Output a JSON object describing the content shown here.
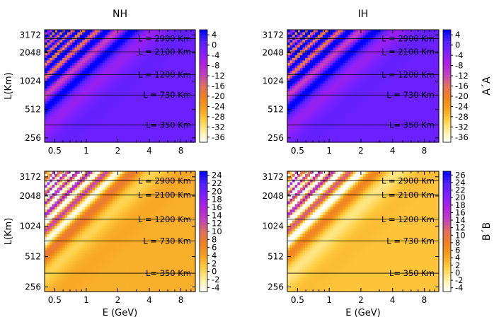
{
  "figure": {
    "column_titles": [
      "NH",
      "IH"
    ],
    "row_labels": [
      "A´A",
      "B´B"
    ],
    "xlabel": "E (GeV)",
    "ylabel": "L(Km)"
  },
  "chart_data": [
    {
      "type": "heatmap",
      "panel": "NH A´A",
      "row": 0,
      "col": 0,
      "title": "NH",
      "xlabel": "",
      "ylabel": "L(Km)",
      "side_label": "",
      "x_scale": "log",
      "y_scale": "log",
      "xlim": [
        0.4,
        11
      ],
      "ylim": [
        230,
        3600
      ],
      "x_ticks": [
        0.5,
        1,
        2,
        4,
        8
      ],
      "x_tick_labels": [
        "0.5",
        "1",
        "2",
        "4",
        "8"
      ],
      "y_ticks": [
        256,
        512,
        1024,
        2048,
        3172
      ],
      "y_tick_labels": [
        "256",
        "512",
        "1024",
        "2048",
        "3172"
      ],
      "colorbar": {
        "min": -38,
        "max": 6,
        "ticks": [
          4,
          0,
          -4,
          -8,
          -12,
          -16,
          -20,
          -24,
          -28,
          -32,
          -36
        ],
        "tick_labels": [
          "4",
          "0",
          "-4",
          "-8",
          "-12",
          "-16",
          "-20",
          "-24",
          "-28",
          "-32",
          "-36"
        ]
      },
      "colormap": [
        "#ffffff",
        "#fff0a0",
        "#ffcc40",
        "#f5a020",
        "#f08020",
        "#e07060",
        "#c040c0",
        "#b020e0",
        "#8020ff",
        "#5020ff",
        "#0000ff"
      ],
      "baseline_value": -1,
      "baselines": [
        {
          "L": 2900,
          "label": "L = 2900 Km"
        },
        {
          "L": 2100,
          "label": "L = 2100 Km"
        },
        {
          "L": 1200,
          "label": "L = 1200 Km"
        },
        {
          "L": 730,
          "label": "L = 730 Km"
        },
        {
          "L": 350,
          "label": "L= 350 Km"
        }
      ]
    },
    {
      "type": "heatmap",
      "panel": "IH A´A",
      "row": 0,
      "col": 1,
      "title": "IH",
      "xlabel": "",
      "ylabel": "",
      "side_label": "A´A",
      "x_scale": "log",
      "y_scale": "log",
      "xlim": [
        0.4,
        11
      ],
      "ylim": [
        230,
        3600
      ],
      "x_ticks": [
        0.5,
        1,
        2,
        4,
        8
      ],
      "x_tick_labels": [
        "0.5",
        "1",
        "2",
        "4",
        "8"
      ],
      "y_ticks": [
        256,
        512,
        1024,
        2048,
        3172
      ],
      "y_tick_labels": [
        "256",
        "512",
        "1024",
        "2048",
        "3172"
      ],
      "colorbar": {
        "min": -38,
        "max": 6,
        "ticks": [
          4,
          0,
          -4,
          -8,
          -12,
          -16,
          -20,
          -24,
          -28,
          -32,
          -36
        ],
        "tick_labels": [
          "4",
          "0",
          "-4",
          "-8",
          "-12",
          "-16",
          "-20",
          "-24",
          "-28",
          "-32",
          "-36"
        ]
      },
      "colormap": [
        "#ffffff",
        "#fff0a0",
        "#ffcc40",
        "#f5a020",
        "#f08020",
        "#e07060",
        "#c040c0",
        "#b020e0",
        "#8020ff",
        "#5020ff",
        "#0000ff"
      ],
      "baseline_value": -1,
      "baselines": [
        {
          "L": 2900,
          "label": "L = 2900 Km"
        },
        {
          "L": 2100,
          "label": "L = 2100 Km"
        },
        {
          "L": 1200,
          "label": "L = 1200 Km"
        },
        {
          "L": 730,
          "label": "L = 730 Km"
        },
        {
          "L": 350,
          "label": "L= 350 Km"
        }
      ]
    },
    {
      "type": "heatmap",
      "panel": "NH B´B",
      "row": 1,
      "col": 0,
      "title": "",
      "xlabel": "E (GeV)",
      "ylabel": "L(Km)",
      "side_label": "",
      "x_scale": "log",
      "y_scale": "log",
      "xlim": [
        0.4,
        11
      ],
      "ylim": [
        230,
        3600
      ],
      "x_ticks": [
        0.5,
        1,
        2,
        4,
        8
      ],
      "x_tick_labels": [
        "0.5",
        "1",
        "2",
        "4",
        "8"
      ],
      "y_ticks": [
        256,
        512,
        1024,
        2048,
        3172
      ],
      "y_tick_labels": [
        "256",
        "512",
        "1024",
        "2048",
        "3172"
      ],
      "colorbar": {
        "min": -5,
        "max": 25,
        "ticks": [
          24,
          22,
          20,
          18,
          16,
          14,
          12,
          10,
          8,
          6,
          4,
          2,
          0,
          -2,
          -4
        ],
        "tick_labels": [
          "24",
          "22",
          "20",
          "18",
          "16",
          "14",
          "12",
          "10",
          "8",
          "6",
          "4",
          "2",
          "0",
          "-2",
          "-4"
        ]
      },
      "colormap": [
        "#ffffff",
        "#fff0a0",
        "#ffcc40",
        "#f5a020",
        "#f08020",
        "#e07060",
        "#c040c0",
        "#b020e0",
        "#8020ff",
        "#5020ff",
        "#0000ff"
      ],
      "baseline_value": 3,
      "baselines": [
        {
          "L": 2900,
          "label": "L = 2900 Km"
        },
        {
          "L": 2100,
          "label": "L = 2100 Km"
        },
        {
          "L": 1200,
          "label": "L = 1200 Km"
        },
        {
          "L": 730,
          "label": "L = 730 Km"
        },
        {
          "L": 350,
          "label": "L= 350 Km"
        }
      ]
    },
    {
      "type": "heatmap",
      "panel": "IH B´B",
      "row": 1,
      "col": 1,
      "title": "",
      "xlabel": "E (GeV)",
      "ylabel": "",
      "side_label": "B´B",
      "x_scale": "log",
      "y_scale": "log",
      "xlim": [
        0.4,
        11
      ],
      "ylim": [
        230,
        3600
      ],
      "x_ticks": [
        0.5,
        1,
        2,
        4,
        8
      ],
      "x_tick_labels": [
        "0.5",
        "1",
        "2",
        "4",
        "8"
      ],
      "y_ticks": [
        256,
        512,
        1024,
        2048,
        3172
      ],
      "y_tick_labels": [
        "256",
        "512",
        "1024",
        "2048",
        "3172"
      ],
      "colorbar": {
        "min": -5,
        "max": 27,
        "ticks": [
          26,
          24,
          22,
          20,
          18,
          16,
          14,
          12,
          10,
          8,
          6,
          4,
          2,
          0,
          -2,
          -4
        ],
        "tick_labels": [
          "26",
          "24",
          "22",
          "20",
          "18",
          "16",
          "14",
          "12",
          "10",
          "8",
          "6",
          "4",
          "2",
          "0",
          "-2",
          "-4"
        ]
      },
      "colormap": [
        "#ffffff",
        "#fff0a0",
        "#ffcc40",
        "#f5a020",
        "#f08020",
        "#e07060",
        "#c040c0",
        "#b020e0",
        "#8020ff",
        "#5020ff",
        "#0000ff"
      ],
      "baseline_value": 2,
      "baselines": [
        {
          "L": 2900,
          "label": "L = 2900 Km"
        },
        {
          "L": 2100,
          "label": "L = 2100 Km"
        },
        {
          "L": 1200,
          "label": "L = 1200 Km"
        },
        {
          "L": 730,
          "label": "L = 730 Km"
        },
        {
          "L": 350,
          "label": "L= 350 Km"
        }
      ]
    }
  ]
}
